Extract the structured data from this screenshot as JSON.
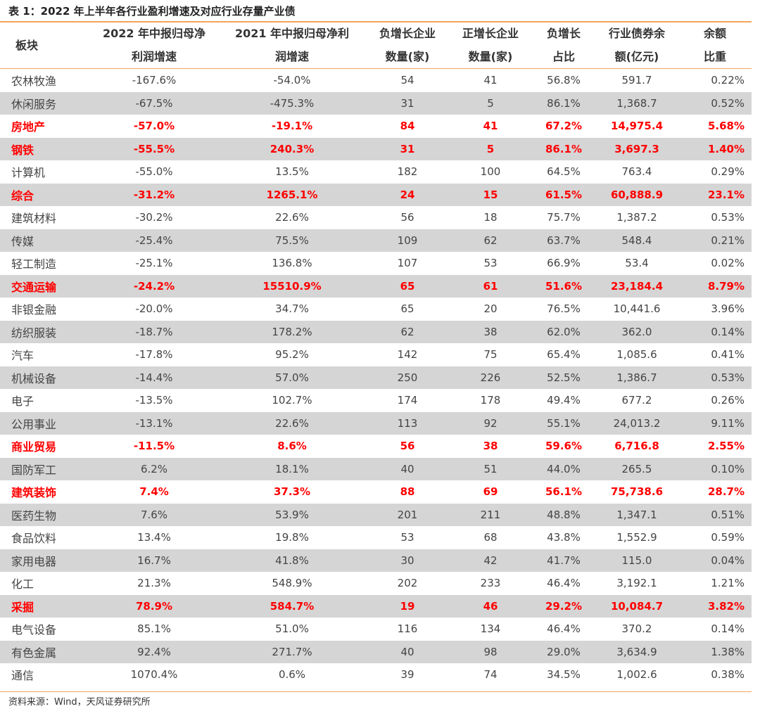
{
  "caption": "表 1：2022 年上半年各行业盈利增速及对应行业存量产业债",
  "headers": {
    "sector": "板块",
    "c1_line1": "2022 年中报归母净",
    "c1_line2": "利润增速",
    "c2_line1": "2021 年中报归母净利",
    "c2_line2": "润增速",
    "c3_line1": "负增长企业",
    "c3_line2": "数量(家)",
    "c4_line1": "正增长企业",
    "c4_line2": "数量(家)",
    "c5_line1": "负增长",
    "c5_line2": "占比",
    "c6_line1": "行业债券余",
    "c6_line2": "额(亿元)",
    "c7_line1": "余额",
    "c7_line2": "比重"
  },
  "rows": [
    {
      "name": "农林牧渔",
      "g2022": "-167.6%",
      "g2021": "-54.0%",
      "neg": "54",
      "pos": "41",
      "neg_ratio": "56.8%",
      "bond": "591.7",
      "weight": "0.22%",
      "highlight": false
    },
    {
      "name": "休闲服务",
      "g2022": "-67.5%",
      "g2021": "-475.3%",
      "neg": "31",
      "pos": "5",
      "neg_ratio": "86.1%",
      "bond": "1,368.7",
      "weight": "0.52%",
      "highlight": false
    },
    {
      "name": "房地产",
      "g2022": "-57.0%",
      "g2021": "-19.1%",
      "neg": "84",
      "pos": "41",
      "neg_ratio": "67.2%",
      "bond": "14,975.4",
      "weight": "5.68%",
      "highlight": true
    },
    {
      "name": "钢铁",
      "g2022": "-55.5%",
      "g2021": "240.3%",
      "neg": "31",
      "pos": "5",
      "neg_ratio": "86.1%",
      "bond": "3,697.3",
      "weight": "1.40%",
      "highlight": true
    },
    {
      "name": "计算机",
      "g2022": "-55.0%",
      "g2021": "13.5%",
      "neg": "182",
      "pos": "100",
      "neg_ratio": "64.5%",
      "bond": "763.4",
      "weight": "0.29%",
      "highlight": false
    },
    {
      "name": "综合",
      "g2022": "-31.2%",
      "g2021": "1265.1%",
      "neg": "24",
      "pos": "15",
      "neg_ratio": "61.5%",
      "bond": "60,888.9",
      "weight": "23.1%",
      "highlight": true
    },
    {
      "name": "建筑材料",
      "g2022": "-30.2%",
      "g2021": "22.6%",
      "neg": "56",
      "pos": "18",
      "neg_ratio": "75.7%",
      "bond": "1,387.2",
      "weight": "0.53%",
      "highlight": false
    },
    {
      "name": "传媒",
      "g2022": "-25.4%",
      "g2021": "75.5%",
      "neg": "109",
      "pos": "62",
      "neg_ratio": "63.7%",
      "bond": "548.4",
      "weight": "0.21%",
      "highlight": false
    },
    {
      "name": "轻工制造",
      "g2022": "-25.1%",
      "g2021": "136.8%",
      "neg": "107",
      "pos": "53",
      "neg_ratio": "66.9%",
      "bond": "53.4",
      "weight": "0.02%",
      "highlight": false
    },
    {
      "name": "交通运输",
      "g2022": "-24.2%",
      "g2021": "15510.9%",
      "neg": "65",
      "pos": "61",
      "neg_ratio": "51.6%",
      "bond": "23,184.4",
      "weight": "8.79%",
      "highlight": true
    },
    {
      "name": "非银金融",
      "g2022": "-20.0%",
      "g2021": "34.7%",
      "neg": "65",
      "pos": "20",
      "neg_ratio": "76.5%",
      "bond": "10,441.6",
      "weight": "3.96%",
      "highlight": false
    },
    {
      "name": "纺织服装",
      "g2022": "-18.7%",
      "g2021": "178.2%",
      "neg": "62",
      "pos": "38",
      "neg_ratio": "62.0%",
      "bond": "362.0",
      "weight": "0.14%",
      "highlight": false
    },
    {
      "name": "汽车",
      "g2022": "-17.8%",
      "g2021": "95.2%",
      "neg": "142",
      "pos": "75",
      "neg_ratio": "65.4%",
      "bond": "1,085.6",
      "weight": "0.41%",
      "highlight": false
    },
    {
      "name": "机械设备",
      "g2022": "-14.4%",
      "g2021": "57.0%",
      "neg": "250",
      "pos": "226",
      "neg_ratio": "52.5%",
      "bond": "1,386.7",
      "weight": "0.53%",
      "highlight": false
    },
    {
      "name": "电子",
      "g2022": "-13.5%",
      "g2021": "102.7%",
      "neg": "174",
      "pos": "178",
      "neg_ratio": "49.4%",
      "bond": "677.2",
      "weight": "0.26%",
      "highlight": false
    },
    {
      "name": "公用事业",
      "g2022": "-13.1%",
      "g2021": "22.6%",
      "neg": "113",
      "pos": "92",
      "neg_ratio": "55.1%",
      "bond": "24,013.2",
      "weight": "9.11%",
      "highlight": false
    },
    {
      "name": "商业贸易",
      "g2022": "-11.5%",
      "g2021": "8.6%",
      "neg": "56",
      "pos": "38",
      "neg_ratio": "59.6%",
      "bond": "6,716.8",
      "weight": "2.55%",
      "highlight": true
    },
    {
      "name": "国防军工",
      "g2022": "6.2%",
      "g2021": "18.1%",
      "neg": "40",
      "pos": "51",
      "neg_ratio": "44.0%",
      "bond": "265.5",
      "weight": "0.10%",
      "highlight": false
    },
    {
      "name": "建筑装饰",
      "g2022": "7.4%",
      "g2021": "37.3%",
      "neg": "88",
      "pos": "69",
      "neg_ratio": "56.1%",
      "bond": "75,738.6",
      "weight": "28.7%",
      "highlight": true
    },
    {
      "name": "医药生物",
      "g2022": "7.6%",
      "g2021": "53.9%",
      "neg": "201",
      "pos": "211",
      "neg_ratio": "48.8%",
      "bond": "1,347.1",
      "weight": "0.51%",
      "highlight": false
    },
    {
      "name": "食品饮料",
      "g2022": "13.4%",
      "g2021": "19.8%",
      "neg": "53",
      "pos": "68",
      "neg_ratio": "43.8%",
      "bond": "1,552.9",
      "weight": "0.59%",
      "highlight": false
    },
    {
      "name": "家用电器",
      "g2022": "16.7%",
      "g2021": "41.8%",
      "neg": "30",
      "pos": "42",
      "neg_ratio": "41.7%",
      "bond": "115.0",
      "weight": "0.04%",
      "highlight": false
    },
    {
      "name": "化工",
      "g2022": "21.3%",
      "g2021": "548.9%",
      "neg": "202",
      "pos": "233",
      "neg_ratio": "46.4%",
      "bond": "3,192.1",
      "weight": "1.21%",
      "highlight": false
    },
    {
      "name": "采掘",
      "g2022": "78.9%",
      "g2021": "584.7%",
      "neg": "19",
      "pos": "46",
      "neg_ratio": "29.2%",
      "bond": "10,084.7",
      "weight": "3.82%",
      "highlight": true
    },
    {
      "name": "电气设备",
      "g2022": "85.1%",
      "g2021": "51.0%",
      "neg": "116",
      "pos": "134",
      "neg_ratio": "46.4%",
      "bond": "370.2",
      "weight": "0.14%",
      "highlight": false
    },
    {
      "name": "有色金属",
      "g2022": "92.4%",
      "g2021": "271.7%",
      "neg": "40",
      "pos": "98",
      "neg_ratio": "29.0%",
      "bond": "3,634.9",
      "weight": "1.38%",
      "highlight": false
    },
    {
      "name": "通信",
      "g2022": "1070.4%",
      "g2021": "0.6%",
      "neg": "39",
      "pos": "74",
      "neg_ratio": "34.5%",
      "bond": "1,002.6",
      "weight": "0.38%",
      "highlight": false
    }
  ],
  "source": "资料来源：Wind，天风证券研究所",
  "colors": {
    "accent_rule": "#f2a55f",
    "highlight_text": "#ff0000",
    "row_shade": "#d5d5d5"
  }
}
